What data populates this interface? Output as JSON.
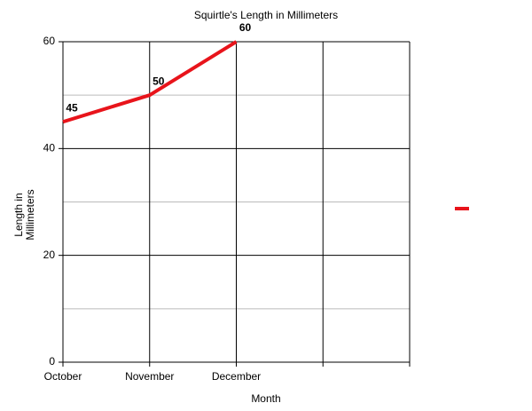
{
  "chart_data": {
    "type": "line",
    "title": "Squirtle's Length in Millimeters",
    "x_label": "Month",
    "y_label": "Length in Millimeters",
    "categories": [
      "October",
      "November",
      "December",
      null,
      null
    ],
    "series": [
      {
        "color": "#e8141b",
        "values": [
          45,
          50,
          60,
          null,
          null
        ]
      }
    ],
    "ylim": [
      0,
      60
    ],
    "yticks": [
      0,
      20,
      40,
      60
    ],
    "yminorticks": [
      10,
      30,
      50
    ],
    "grid": true,
    "legend": "right",
    "data_labels": true
  }
}
